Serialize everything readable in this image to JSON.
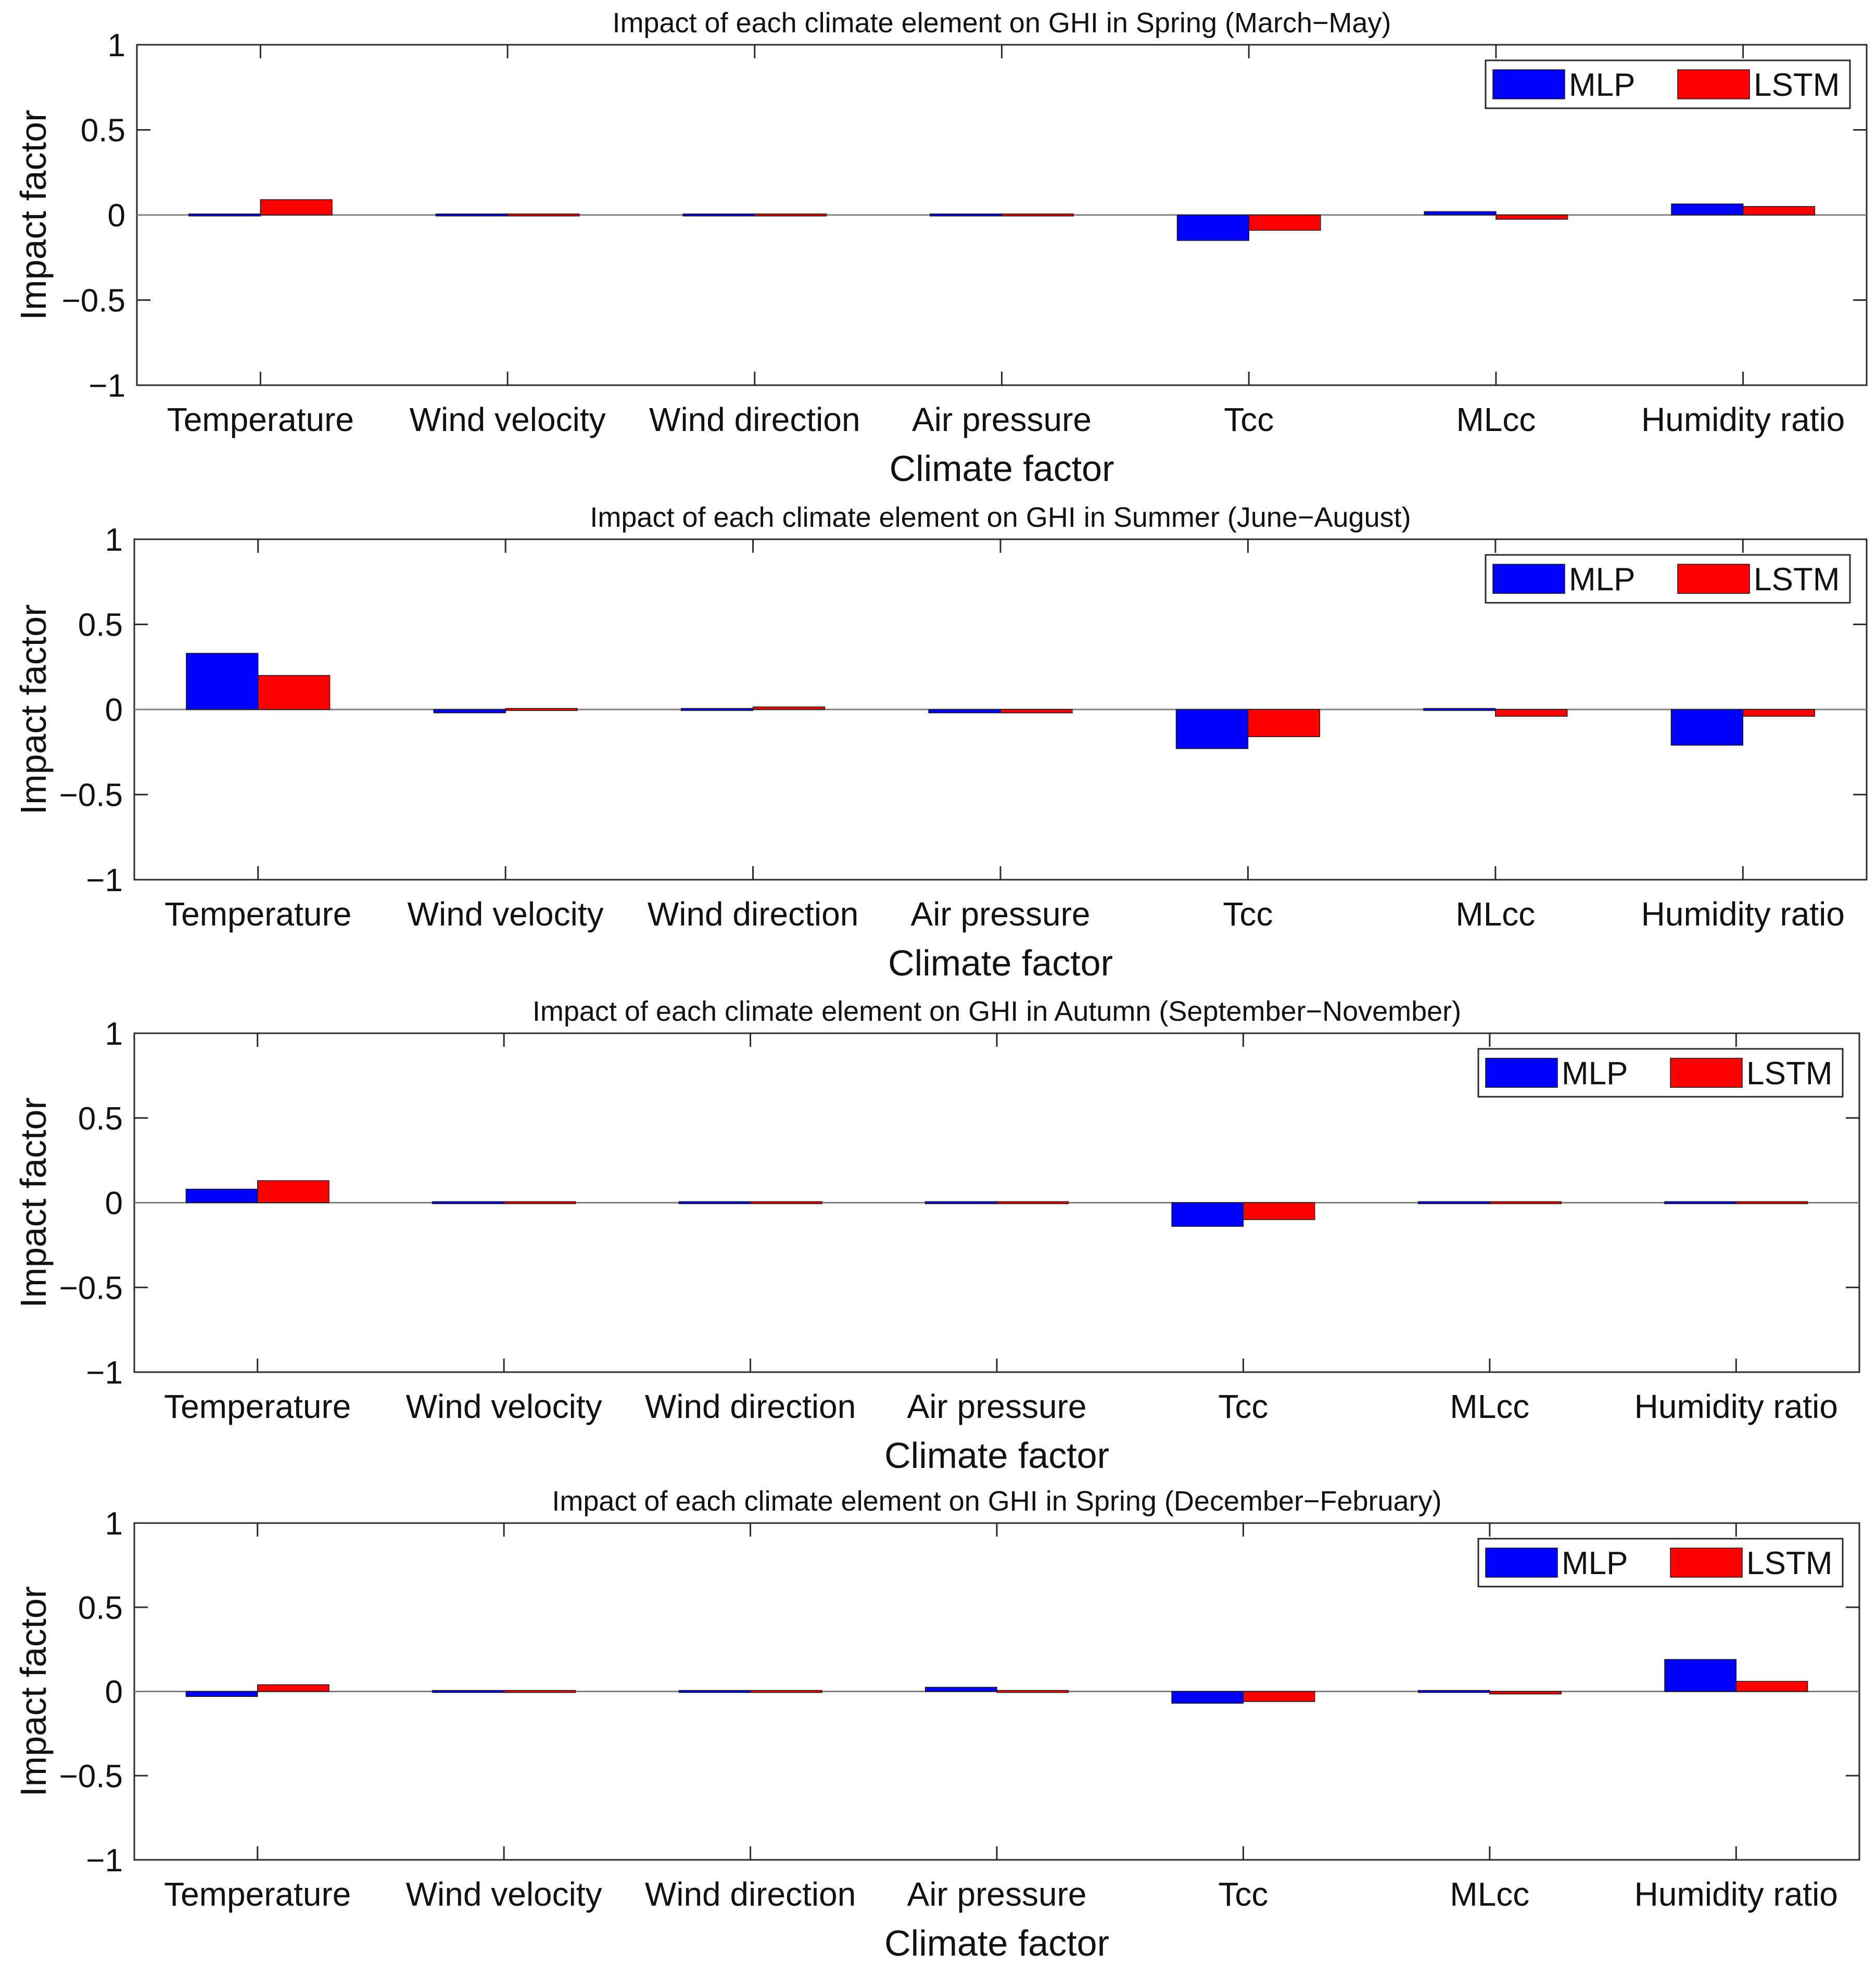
{
  "figure": {
    "colors": {
      "mlp": "#0000ff",
      "lstm": "#ff0000",
      "axis": "#2b2b2b",
      "zero_line": "#808080"
    }
  },
  "chart_data": [
    {
      "type": "bar",
      "title": "Impact of each climate element on GHI in Spring (March−May)",
      "xlabel": "Climate factor",
      "ylabel": "Impact factor",
      "ylim": [
        -1,
        1
      ],
      "yticks": [
        1,
        0.5,
        0,
        -0.5,
        -1
      ],
      "ytick_labels": [
        "1",
        "0.5",
        "0",
        "−0.5",
        "−1"
      ],
      "grid": false,
      "legend": "top-right",
      "categories": [
        "Temperature",
        "Wind velocity",
        "Wind direction",
        "Air pressure",
        "Tcc",
        "MLcc",
        "Humidity ratio"
      ],
      "series": [
        {
          "name": "MLP",
          "color": "#0000ff",
          "values": [
            0.005,
            0.002,
            0.005,
            -0.003,
            -0.15,
            0.02,
            0.065
          ]
        },
        {
          "name": "LSTM",
          "color": "#ff0000",
          "values": [
            0.09,
            0.01,
            0.008,
            0.003,
            -0.09,
            -0.025,
            0.05
          ]
        }
      ]
    },
    {
      "type": "bar",
      "title": "Impact of each climate element on GHI in Summer (June−August)",
      "xlabel": "Climate factor",
      "ylabel": "Impact factor",
      "ylim": [
        -1,
        1
      ],
      "yticks": [
        1,
        0.5,
        0,
        -0.5,
        -1
      ],
      "ytick_labels": [
        "1",
        "0.5",
        "0",
        "−0.5",
        "−1"
      ],
      "grid": false,
      "legend": "top-right",
      "categories": [
        "Temperature",
        "Wind velocity",
        "Wind direction",
        "Air pressure",
        "Tcc",
        "MLcc",
        "Humidity ratio"
      ],
      "series": [
        {
          "name": "MLP",
          "color": "#0000ff",
          "values": [
            0.33,
            -0.02,
            -0.003,
            -0.02,
            -0.23,
            -0.005,
            -0.21
          ]
        },
        {
          "name": "LSTM",
          "color": "#ff0000",
          "values": [
            0.2,
            0.003,
            0.015,
            -0.02,
            -0.16,
            -0.04,
            -0.04
          ]
        }
      ]
    },
    {
      "type": "bar",
      "title": "Impact of each climate element on GHI in Autumn (September−November)",
      "xlabel": "Climate factor",
      "ylabel": "Impact factor",
      "ylim": [
        -1,
        1
      ],
      "yticks": [
        1,
        0.5,
        0,
        -0.5,
        -1
      ],
      "ytick_labels": [
        "1",
        "0.5",
        "0",
        "−0.5",
        "−1"
      ],
      "grid": false,
      "legend": "top-right",
      "categories": [
        "Temperature",
        "Wind velocity",
        "Wind direction",
        "Air pressure",
        "Tcc",
        "MLcc",
        "Humidity ratio"
      ],
      "series": [
        {
          "name": "MLP",
          "color": "#0000ff",
          "values": [
            0.08,
            -0.01,
            0.002,
            -0.002,
            -0.14,
            -0.003,
            -0.002
          ]
        },
        {
          "name": "LSTM",
          "color": "#ff0000",
          "values": [
            0.13,
            -0.01,
            0.002,
            -0.004,
            -0.1,
            -0.01,
            -0.005
          ]
        }
      ]
    },
    {
      "type": "bar",
      "title": "Impact of each climate element on GHI in Spring (December−February)",
      "xlabel": "Climate factor",
      "ylabel": "Impact factor",
      "ylim": [
        -1,
        1
      ],
      "yticks": [
        1,
        0.5,
        0,
        -0.5,
        -1
      ],
      "ytick_labels": [
        "1",
        "0.5",
        "0",
        "−0.5",
        "−1"
      ],
      "grid": false,
      "legend": "top-right",
      "categories": [
        "Temperature",
        "Wind velocity",
        "Wind direction",
        "Air pressure",
        "Tcc",
        "MLcc",
        "Humidity ratio"
      ],
      "series": [
        {
          "name": "MLP",
          "color": "#0000ff",
          "values": [
            -0.03,
            0.003,
            0.003,
            0.025,
            -0.07,
            0.003,
            0.19
          ]
        },
        {
          "name": "LSTM",
          "color": "#ff0000",
          "values": [
            0.04,
            0.002,
            0.003,
            0.003,
            -0.06,
            -0.015,
            0.06
          ]
        }
      ]
    }
  ]
}
